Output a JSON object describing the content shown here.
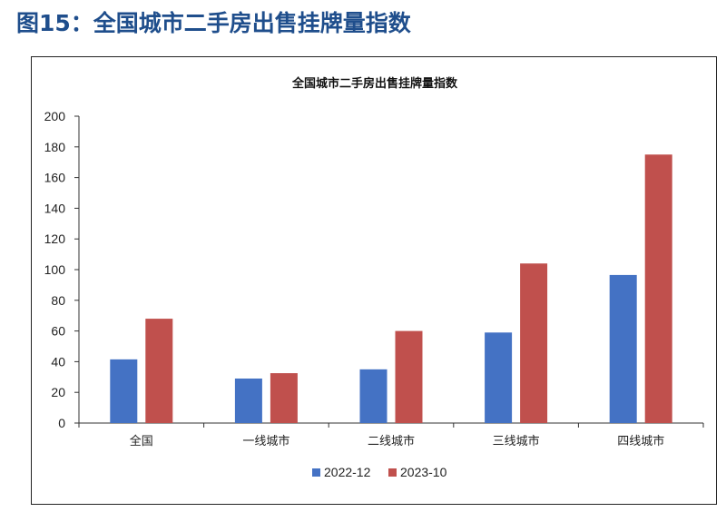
{
  "figure": {
    "title": "图15：全国城市二手房出售挂牌量指数"
  },
  "chart_data": {
    "type": "bar",
    "title": "全国城市二手房出售挂牌量指数",
    "xlabel": "",
    "ylabel": "",
    "categories": [
      "全国",
      "一线城市",
      "二线城市",
      "三线城市",
      "四线城市"
    ],
    "series": [
      {
        "name": "2022-12",
        "color": "#4472c4",
        "values": [
          41.5,
          29,
          35,
          59,
          96.5
        ]
      },
      {
        "name": "2023-10",
        "color": "#c0504d",
        "values": [
          68,
          32.5,
          60,
          104,
          175
        ]
      }
    ],
    "ylim": [
      0,
      200
    ],
    "yticks": [
      "0",
      "20",
      "40",
      "60",
      "80",
      "100",
      "120",
      "140",
      "160",
      "180",
      "200"
    ],
    "grid": false,
    "legend_position": "bottom"
  }
}
